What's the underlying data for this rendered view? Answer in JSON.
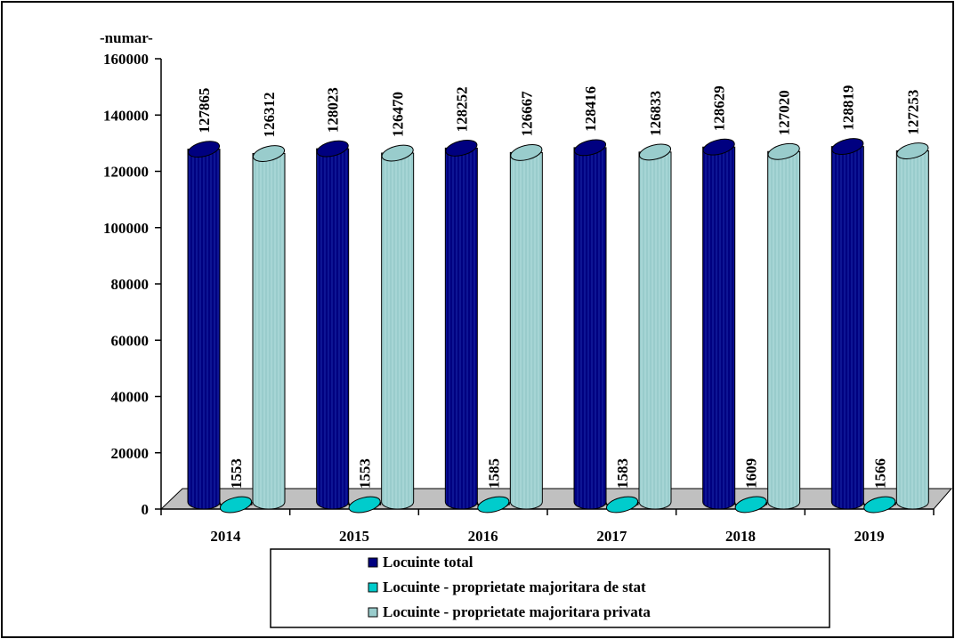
{
  "chart_data": {
    "type": "bar",
    "unit_label": "-numar-",
    "categories": [
      "2014",
      "2015",
      "2016",
      "2017",
      "2018",
      "2019"
    ],
    "series": [
      {
        "name": "Locuinte total",
        "color": "#000080",
        "values": [
          127865,
          128023,
          128252,
          128416,
          128629,
          128819
        ]
      },
      {
        "name": "Locuinte - proprietate majoritara de stat",
        "color": "#00CCCC",
        "values": [
          1553,
          1553,
          1585,
          1583,
          1609,
          1566
        ]
      },
      {
        "name": "Locuinte - proprietate majoritara privata",
        "color": "#99CCCC",
        "values": [
          126312,
          126470,
          126667,
          126833,
          127020,
          127253
        ]
      }
    ],
    "yticks": [
      "0",
      "20000",
      "40000",
      "60000",
      "80000",
      "100000",
      "120000",
      "140000",
      "160000"
    ],
    "ylim": [
      0,
      160000
    ],
    "grid": false,
    "legend_position": "bottom",
    "data_labels": true,
    "bar_shape": "cylinder"
  }
}
